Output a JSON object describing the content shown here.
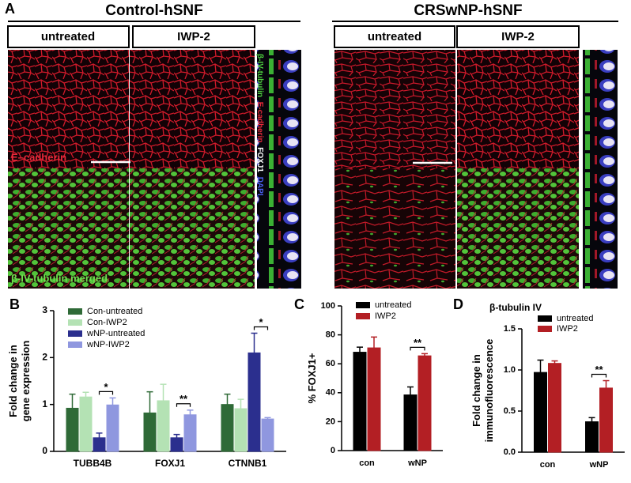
{
  "panel_a": {
    "letter": "A",
    "groups": [
      {
        "title": "Control-hSNF",
        "conditions": [
          "untreated",
          "IWP-2"
        ]
      },
      {
        "title": "CRSwNP-hSNF",
        "conditions": [
          "untreated",
          "IWP-2"
        ]
      }
    ],
    "top_label": "E–cadherin",
    "bottom_label": "β-IV-tubulin merged",
    "stain_labels": [
      "β-IV-tubulin",
      "E-cadherin",
      "FOXJ1",
      "DAPI"
    ]
  },
  "chart_data": [
    {
      "type": "bar",
      "panel": "B",
      "ylabel": [
        "Fold change in",
        "gene expression"
      ],
      "categories": [
        "TUBB4B",
        "FOXJ1",
        "CTNNB1"
      ],
      "series": [
        {
          "name": "Con-untreated",
          "color": "#2f6a37",
          "values": [
            0.92,
            0.82,
            1.0
          ],
          "errors": [
            0.3,
            0.45,
            0.22
          ]
        },
        {
          "name": "Con-IWP2",
          "color": "#b4e2b4",
          "values": [
            1.16,
            1.08,
            0.91
          ],
          "errors": [
            0.1,
            0.35,
            0.2
          ]
        },
        {
          "name": "wNP-untreated",
          "color": "#2b2f8e",
          "values": [
            0.29,
            0.29,
            2.1
          ],
          "errors": [
            0.1,
            0.07,
            0.42
          ]
        },
        {
          "name": "wNP-IWP2",
          "color": "#8f97df",
          "values": [
            0.99,
            0.78,
            0.69
          ],
          "errors": [
            0.15,
            0.1,
            0.03
          ]
        }
      ],
      "significance": [
        "*",
        "**",
        "*"
      ],
      "ylim": [
        0,
        3
      ],
      "yticks": [
        0,
        1,
        2,
        3
      ]
    },
    {
      "type": "bar",
      "panel": "C",
      "ylabel": [
        "% FOXJ1+"
      ],
      "categories": [
        "con",
        "wNP"
      ],
      "series": [
        {
          "name": "untreated",
          "color": "#000000",
          "values": [
            68,
            38.5
          ],
          "errors": [
            3.5,
            5.5
          ]
        },
        {
          "name": "IWP2",
          "color": "#b31f24",
          "values": [
            71,
            65.5
          ],
          "errors": [
            7.5,
            1.5
          ]
        }
      ],
      "significance": [
        null,
        "**"
      ],
      "ylim": [
        0,
        100
      ],
      "yticks": [
        0,
        20,
        40,
        60,
        80,
        100
      ]
    },
    {
      "type": "bar",
      "panel": "D",
      "title": "β-tubulin IV",
      "ylabel": [
        "Fold change in",
        "immunofluorescence"
      ],
      "categories": [
        "con",
        "wNP"
      ],
      "series": [
        {
          "name": "untreated",
          "color": "#000000",
          "values": [
            0.97,
            0.37
          ],
          "errors": [
            0.15,
            0.05
          ]
        },
        {
          "name": "IWP2",
          "color": "#b31f24",
          "values": [
            1.08,
            0.78
          ],
          "errors": [
            0.03,
            0.09
          ]
        }
      ],
      "significance": [
        null,
        "**"
      ],
      "ylim": [
        0,
        1.5
      ],
      "yticks": [
        {
          "value": 0,
          "label": "0.0"
        },
        0.5,
        {
          "value": 1,
          "label": "1.0"
        },
        {
          "value": 1.5,
          "label": "1.5"
        }
      ]
    }
  ]
}
